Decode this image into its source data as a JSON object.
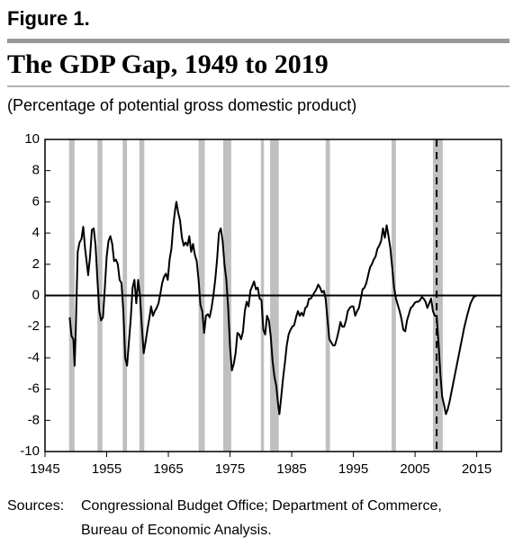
{
  "chart_data": {
    "type": "line",
    "figure_label": "Figure 1.",
    "title": "The GDP Gap, 1949 to 2019",
    "subtitle": "(Percentage of potential gross domestic product)",
    "source_label": "Sources:",
    "sources": [
      "Congressional Budget Office; Department of Commerce,",
      "Bureau of Economic Analysis."
    ],
    "color": "#000000",
    "shade_color": "#c0c0c0",
    "xlim": [
      1945,
      2019
    ],
    "ylim": [
      -10,
      10
    ],
    "xticks": [
      1945,
      1955,
      1965,
      1975,
      1985,
      1995,
      2005,
      2015
    ],
    "yticks": [
      -10,
      -8,
      -6,
      -4,
      -2,
      0,
      2,
      4,
      6,
      8,
      10
    ],
    "hline": 0,
    "vline": 2008.5,
    "shaded": [
      [
        1948.9,
        1949.8
      ],
      [
        1953.5,
        1954.3
      ],
      [
        1957.6,
        1958.3
      ],
      [
        1960.3,
        1961.1
      ],
      [
        1969.9,
        1970.9
      ],
      [
        1973.9,
        1975.2
      ],
      [
        1980.0,
        1980.5
      ],
      [
        1981.5,
        1982.9
      ],
      [
        1990.5,
        1991.2
      ],
      [
        2001.2,
        2001.9
      ],
      [
        2007.9,
        2009.5
      ]
    ],
    "x": [
      1949.0,
      1949.3,
      1949.6,
      1949.8,
      1950.0,
      1950.3,
      1950.6,
      1950.9,
      1951.2,
      1951.5,
      1951.8,
      1952.0,
      1952.3,
      1952.6,
      1952.9,
      1953.2,
      1953.5,
      1953.8,
      1954.1,
      1954.4,
      1954.7,
      1955.0,
      1955.3,
      1955.6,
      1955.9,
      1956.2,
      1956.5,
      1956.8,
      1957.1,
      1957.4,
      1957.7,
      1958.0,
      1958.3,
      1958.6,
      1958.9,
      1959.2,
      1959.5,
      1959.8,
      1960.1,
      1960.4,
      1960.7,
      1961.0,
      1961.3,
      1961.6,
      1961.9,
      1962.2,
      1962.5,
      1962.8,
      1963.1,
      1963.4,
      1963.7,
      1964.0,
      1964.3,
      1964.6,
      1964.9,
      1965.2,
      1965.5,
      1965.8,
      1966.1,
      1966.3,
      1966.6,
      1966.9,
      1967.2,
      1967.5,
      1967.8,
      1968.1,
      1968.4,
      1968.7,
      1969.0,
      1969.3,
      1969.6,
      1969.9,
      1970.2,
      1970.5,
      1970.8,
      1971.1,
      1971.4,
      1971.7,
      1972.0,
      1972.3,
      1972.6,
      1972.9,
      1973.2,
      1973.5,
      1973.8,
      1974.1,
      1974.4,
      1974.7,
      1975.0,
      1975.3,
      1975.6,
      1975.9,
      1976.2,
      1976.5,
      1976.8,
      1977.1,
      1977.4,
      1977.7,
      1978.0,
      1978.3,
      1978.6,
      1978.9,
      1979.2,
      1979.5,
      1979.8,
      1980.1,
      1980.4,
      1980.7,
      1981.0,
      1981.3,
      1981.6,
      1981.9,
      1982.2,
      1982.5,
      1982.8,
      1983.0,
      1983.3,
      1983.6,
      1983.9,
      1984.2,
      1984.5,
      1984.8,
      1985.1,
      1985.4,
      1985.7,
      1986.0,
      1986.3,
      1986.6,
      1986.9,
      1987.2,
      1987.5,
      1987.8,
      1988.1,
      1988.4,
      1988.7,
      1989.0,
      1989.3,
      1989.6,
      1989.9,
      1990.2,
      1990.5,
      1990.8,
      1991.1,
      1991.4,
      1991.7,
      1992.0,
      1992.3,
      1992.6,
      1992.9,
      1993.2,
      1993.5,
      1993.8,
      1994.1,
      1994.4,
      1994.7,
      1995.0,
      1995.3,
      1995.6,
      1995.9,
      1996.2,
      1996.5,
      1996.8,
      1997.1,
      1997.4,
      1997.7,
      1998.0,
      1998.3,
      1998.6,
      1998.9,
      1999.2,
      1999.5,
      1999.8,
      2000.1,
      2000.4,
      2000.7,
      2001.0,
      2001.3,
      2001.6,
      2001.9,
      2002.2,
      2002.5,
      2002.8,
      2003.1,
      2003.4,
      2003.7,
      2004.0,
      2004.3,
      2004.6,
      2004.9,
      2005.2,
      2005.5,
      2005.8,
      2006.1,
      2006.4,
      2006.7,
      2007.0,
      2007.3,
      2007.6,
      2007.9,
      2008.2,
      2008.5,
      2008.8,
      2009.1,
      2009.4,
      2009.7,
      2010.0,
      2010.3,
      2010.6,
      2011.0,
      2011.5,
      2012.0,
      2012.5,
      2013.0,
      2013.5,
      2014.0,
      2014.5,
      2015.0
    ],
    "values": [
      -1.4,
      -2.6,
      -2.8,
      -4.5,
      -2.0,
      2.8,
      3.4,
      3.6,
      4.4,
      3.0,
      2.0,
      1.3,
      2.5,
      4.2,
      4.3,
      3.2,
      1.0,
      -1.0,
      -1.6,
      -1.4,
      0.5,
      2.5,
      3.5,
      3.8,
      3.3,
      2.2,
      2.3,
      2.0,
      1.0,
      0.8,
      -1.0,
      -4.0,
      -4.5,
      -3.0,
      -1.5,
      0.5,
      1.0,
      -0.5,
      1.0,
      0.0,
      -2.0,
      -3.7,
      -3.0,
      -2.2,
      -1.5,
      -0.7,
      -1.3,
      -1.0,
      -0.8,
      -0.5,
      0.1,
      0.8,
      1.2,
      1.4,
      1.0,
      2.3,
      3.0,
      4.5,
      5.5,
      6.0,
      5.3,
      4.8,
      3.7,
      3.2,
      3.4,
      3.2,
      3.8,
      2.8,
      3.3,
      2.6,
      2.2,
      1.0,
      -0.6,
      -1.0,
      -2.4,
      -1.3,
      -1.2,
      -1.4,
      -0.8,
      0.0,
      1.0,
      2.3,
      4.0,
      4.3,
      3.5,
      2.0,
      1.0,
      -0.8,
      -3.3,
      -4.8,
      -4.4,
      -3.7,
      -2.4,
      -2.5,
      -2.8,
      -2.3,
      -1.0,
      -0.4,
      -0.7,
      0.3,
      0.6,
      0.9,
      0.4,
      0.5,
      -0.2,
      -0.3,
      -2.2,
      -2.5,
      -1.3,
      -1.6,
      -2.6,
      -4.2,
      -5.2,
      -5.8,
      -7.0,
      -7.6,
      -6.5,
      -5.3,
      -4.3,
      -3.2,
      -2.5,
      -2.2,
      -2.0,
      -1.9,
      -1.4,
      -1.0,
      -1.3,
      -1.1,
      -1.3,
      -0.8,
      -0.7,
      -0.2,
      -0.2,
      0.0,
      0.2,
      0.4,
      0.7,
      0.5,
      0.2,
      0.3,
      -0.2,
      -1.5,
      -2.8,
      -3.0,
      -3.2,
      -3.2,
      -2.8,
      -2.3,
      -1.7,
      -2.0,
      -2.0,
      -1.6,
      -1.0,
      -0.8,
      -0.7,
      -0.7,
      -1.3,
      -1.0,
      -0.8,
      -0.2,
      0.4,
      0.5,
      0.8,
      1.3,
      1.8,
      2.0,
      2.3,
      2.5,
      3.0,
      3.2,
      3.5,
      4.3,
      3.7,
      4.5,
      3.8,
      3.0,
      1.8,
      0.5,
      -0.2,
      -0.6,
      -1.0,
      -1.5,
      -2.2,
      -2.3,
      -1.6,
      -1.2,
      -0.8,
      -0.7,
      -0.5,
      -0.4,
      -0.4,
      -0.3,
      -0.1,
      -0.2,
      -0.4,
      -0.8,
      -0.5,
      -0.2,
      -1.0,
      -1.3,
      -1.3,
      -3.0,
      -5.0,
      -6.5,
      -7.0,
      -7.6,
      -7.3,
      -6.8,
      -6.0,
      -5.0,
      -4.0,
      -3.0,
      -2.0,
      -1.2,
      -0.5,
      -0.1,
      0.0
    ]
  }
}
